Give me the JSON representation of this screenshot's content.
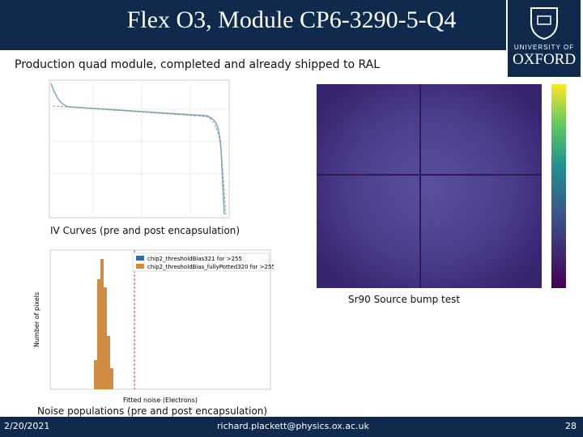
{
  "header": {
    "title": "Flex O3, Module CP6-3290-5-Q4",
    "logo": {
      "line1": "UNIVERSITY OF",
      "line2": "OXFORD"
    }
  },
  "subtitle": "Production quad module, completed and already shipped to RAL",
  "figures": [
    {
      "caption": "IV Curves (pre and post encapsulation)"
    },
    {
      "caption": "Sr90 Source bump test"
    },
    {
      "caption": "Noise populations (pre and post encapsulation)",
      "legend": [
        "chip2_thresholdBias321 for >255",
        "chip2_thresholdBias_fullyPotted320 for >255"
      ],
      "x_label": "Fitted noise (Electrons)",
      "y_label": "Number of pixels"
    }
  ],
  "footer": {
    "date": "2/20/2021",
    "email": "richard.plackett@physics.ox.ac.uk",
    "page": "28"
  }
}
